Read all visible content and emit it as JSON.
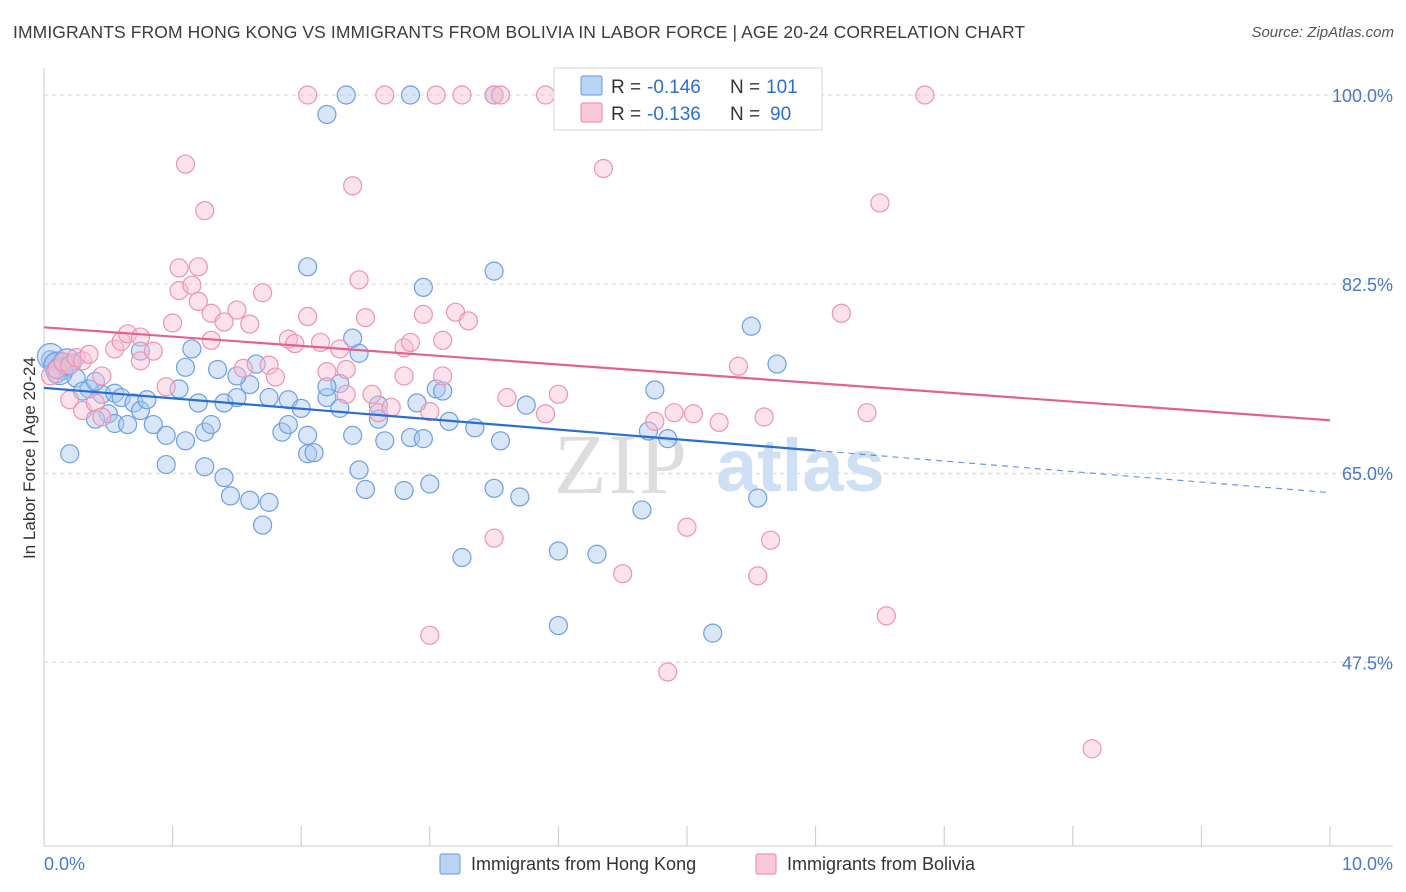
{
  "title": "IMMIGRANTS FROM HONG KONG VS IMMIGRANTS FROM BOLIVIA IN LABOR FORCE | AGE 20-24 CORRELATION CHART",
  "source": "Source: ZipAtlas.com",
  "watermark": {
    "zip": "ZIP",
    "atlas": "atlas"
  },
  "legend": {
    "r_label": "R =",
    "n_label": "N =",
    "entries": [
      {
        "r": "-0.146",
        "n": "101"
      },
      {
        "r": "-0.136",
        "n": "90"
      }
    ]
  },
  "chart_data": {
    "type": "scatter",
    "title": "IMMIGRANTS FROM HONG KONG VS IMMIGRANTS FROM BOLIVIA IN LABOR FORCE | AGE 20-24 CORRELATION CHART",
    "xlabel": "",
    "ylabel": "In Labor Force | Age 20-24",
    "xlim": [
      0,
      10
    ],
    "ylim": [
      30.5,
      102.5
    ],
    "x_tick_labels": [
      "0.0%",
      "10.0%"
    ],
    "y_ticks": [
      47.5,
      65.0,
      82.5,
      100.0
    ],
    "y_tick_labels": [
      "47.5%",
      "65.0%",
      "82.5%",
      "100.0%"
    ],
    "grid": true,
    "legend_position": "top-center",
    "colors": {
      "hong_kong_fill": "#a9c8f0",
      "hong_kong_stroke": "#6e9fe0",
      "hong_kong_line": "#2a6fd0",
      "bolivia_fill": "#f7bfd3",
      "bolivia_stroke": "#ee93b3",
      "bolivia_line": "#e2628f"
    },
    "series": [
      {
        "name": "Immigrants from Hong Kong",
        "r": -0.146,
        "n": 101,
        "trend": {
          "x0": 0.0,
          "y0": 72.9,
          "x1": 6.0,
          "y1": 67.1,
          "dash_x1": 10.0,
          "dash_y1": 63.2
        },
        "points": [
          [
            0.05,
            75.5
          ],
          [
            0.08,
            75.2
          ],
          [
            0.12,
            75.0
          ],
          [
            0.15,
            74.5
          ],
          [
            0.18,
            74.8
          ],
          [
            0.22,
            75.2
          ],
          [
            0.1,
            74.2
          ],
          [
            0.25,
            73.8
          ],
          [
            0.35,
            72.8
          ],
          [
            0.3,
            72.6
          ],
          [
            0.45,
            72.3
          ],
          [
            0.55,
            72.4
          ],
          [
            0.6,
            72.0
          ],
          [
            0.7,
            71.5
          ],
          [
            0.75,
            70.8
          ],
          [
            0.5,
            70.5
          ],
          [
            0.4,
            70.0
          ],
          [
            0.55,
            69.6
          ],
          [
            0.85,
            69.5
          ],
          [
            0.65,
            69.5
          ],
          [
            0.95,
            68.5
          ],
          [
            1.1,
            68.0
          ],
          [
            1.25,
            68.8
          ],
          [
            1.3,
            69.5
          ],
          [
            1.4,
            71.5
          ],
          [
            1.5,
            72.0
          ],
          [
            1.6,
            73.2
          ],
          [
            1.75,
            72.0
          ],
          [
            1.9,
            71.8
          ],
          [
            2.0,
            71.0
          ],
          [
            2.2,
            72.0
          ],
          [
            2.3,
            73.3
          ],
          [
            1.05,
            72.8
          ],
          [
            1.2,
            71.5
          ],
          [
            0.8,
            71.8
          ],
          [
            1.1,
            74.8
          ],
          [
            1.35,
            74.6
          ],
          [
            1.5,
            74.0
          ],
          [
            1.65,
            75.1
          ],
          [
            1.15,
            76.5
          ],
          [
            0.75,
            76.3
          ],
          [
            0.4,
            73.5
          ],
          [
            0.2,
            66.8
          ],
          [
            0.95,
            65.8
          ],
          [
            1.25,
            65.6
          ],
          [
            1.4,
            64.6
          ],
          [
            1.45,
            62.9
          ],
          [
            1.6,
            62.5
          ],
          [
            1.75,
            62.3
          ],
          [
            1.7,
            60.2
          ],
          [
            1.85,
            68.8
          ],
          [
            1.9,
            69.5
          ],
          [
            2.05,
            68.5
          ],
          [
            2.05,
            66.8
          ],
          [
            2.1,
            66.9
          ],
          [
            2.2,
            73.0
          ],
          [
            2.3,
            71.0
          ],
          [
            2.4,
            68.5
          ],
          [
            2.45,
            76.1
          ],
          [
            2.4,
            77.5
          ],
          [
            2.5,
            63.5
          ],
          [
            2.45,
            65.3
          ],
          [
            2.6,
            71.3
          ],
          [
            2.6,
            70.0
          ],
          [
            2.65,
            68.0
          ],
          [
            2.8,
            63.4
          ],
          [
            2.85,
            68.3
          ],
          [
            2.9,
            71.5
          ],
          [
            2.95,
            68.2
          ],
          [
            3.0,
            64.0
          ],
          [
            3.05,
            72.8
          ],
          [
            3.1,
            72.6
          ],
          [
            2.95,
            82.2
          ],
          [
            3.15,
            69.8
          ],
          [
            3.25,
            57.2
          ],
          [
            3.35,
            69.2
          ],
          [
            3.5,
            63.6
          ],
          [
            3.55,
            68.0
          ],
          [
            3.7,
            62.8
          ],
          [
            3.75,
            71.3
          ],
          [
            3.5,
            83.7
          ],
          [
            4.0,
            50.9
          ],
          [
            4.0,
            57.8
          ],
          [
            4.3,
            57.5
          ],
          [
            4.65,
            61.6
          ],
          [
            4.7,
            68.9
          ],
          [
            4.75,
            72.7
          ],
          [
            4.85,
            68.2
          ],
          [
            5.2,
            50.2
          ],
          [
            5.5,
            78.6
          ],
          [
            5.55,
            62.7
          ],
          [
            5.7,
            75.1
          ],
          [
            2.05,
            84.1
          ],
          [
            2.2,
            98.2
          ],
          [
            2.35,
            100.0
          ],
          [
            2.85,
            100.0
          ],
          [
            3.5,
            100.0
          ],
          [
            0.05,
            75.8
          ],
          [
            0.1,
            75.0
          ],
          [
            0.12,
            74.4
          ],
          [
            0.18,
            75.3
          ]
        ]
      },
      {
        "name": "Immigrants from Bolivia",
        "r": -0.136,
        "n": 90,
        "trend": {
          "x0": 0.0,
          "y0": 78.5,
          "x1": 10.0,
          "y1": 69.9
        },
        "points": [
          [
            0.05,
            74.0
          ],
          [
            0.1,
            74.6
          ],
          [
            0.15,
            75.3
          ],
          [
            0.2,
            75.0
          ],
          [
            0.25,
            75.7
          ],
          [
            0.3,
            75.4
          ],
          [
            0.35,
            76.0
          ],
          [
            0.45,
            74.0
          ],
          [
            0.2,
            71.8
          ],
          [
            0.3,
            70.8
          ],
          [
            0.4,
            71.5
          ],
          [
            0.45,
            70.2
          ],
          [
            0.55,
            76.5
          ],
          [
            0.6,
            77.2
          ],
          [
            0.65,
            77.9
          ],
          [
            0.75,
            77.6
          ],
          [
            0.75,
            75.4
          ],
          [
            0.85,
            76.3
          ],
          [
            0.95,
            73.0
          ],
          [
            1.0,
            78.9
          ],
          [
            1.05,
            81.9
          ],
          [
            1.15,
            82.4
          ],
          [
            1.2,
            80.9
          ],
          [
            1.05,
            84.0
          ],
          [
            1.2,
            84.1
          ],
          [
            1.3,
            79.8
          ],
          [
            1.3,
            77.3
          ],
          [
            1.4,
            79.0
          ],
          [
            1.5,
            80.1
          ],
          [
            1.55,
            74.7
          ],
          [
            1.6,
            78.8
          ],
          [
            1.7,
            81.7
          ],
          [
            1.75,
            75.0
          ],
          [
            1.8,
            73.9
          ],
          [
            1.9,
            77.4
          ],
          [
            1.95,
            77.0
          ],
          [
            2.05,
            79.5
          ],
          [
            2.15,
            77.1
          ],
          [
            2.2,
            74.4
          ],
          [
            2.3,
            76.5
          ],
          [
            2.35,
            74.6
          ],
          [
            2.35,
            72.3
          ],
          [
            2.45,
            82.9
          ],
          [
            2.5,
            79.4
          ],
          [
            2.55,
            72.3
          ],
          [
            2.6,
            70.6
          ],
          [
            2.7,
            71.1
          ],
          [
            2.8,
            76.6
          ],
          [
            2.8,
            74.0
          ],
          [
            2.85,
            77.1
          ],
          [
            2.95,
            79.7
          ],
          [
            3.0,
            70.7
          ],
          [
            3.1,
            74.0
          ],
          [
            3.1,
            77.3
          ],
          [
            3.2,
            79.9
          ],
          [
            3.3,
            79.1
          ],
          [
            3.0,
            50.0
          ],
          [
            3.5,
            59.0
          ],
          [
            3.6,
            72.0
          ],
          [
            3.9,
            70.5
          ],
          [
            4.0,
            72.3
          ],
          [
            4.5,
            55.7
          ],
          [
            4.75,
            69.8
          ],
          [
            4.9,
            70.6
          ],
          [
            5.05,
            70.5
          ],
          [
            4.85,
            46.6
          ],
          [
            5.0,
            60.0
          ],
          [
            5.25,
            69.7
          ],
          [
            5.4,
            74.9
          ],
          [
            5.55,
            55.5
          ],
          [
            5.6,
            70.2
          ],
          [
            5.65,
            58.8
          ],
          [
            6.2,
            79.8
          ],
          [
            6.4,
            70.6
          ],
          [
            6.5,
            90.0
          ],
          [
            6.55,
            51.8
          ],
          [
            8.15,
            39.5
          ],
          [
            1.1,
            93.6
          ],
          [
            1.25,
            89.3
          ],
          [
            2.4,
            91.6
          ],
          [
            2.05,
            100.0
          ],
          [
            2.65,
            100.0
          ],
          [
            3.05,
            100.0
          ],
          [
            3.25,
            100.0
          ],
          [
            3.5,
            100.0
          ],
          [
            3.55,
            100.0
          ],
          [
            3.9,
            100.0
          ],
          [
            4.1,
            100.0
          ],
          [
            4.35,
            93.2
          ],
          [
            6.85,
            100.0
          ]
        ]
      }
    ]
  },
  "bottom_legend": {
    "items": [
      {
        "label": "Immigrants from Hong Kong"
      },
      {
        "label": "Immigrants from Bolivia"
      }
    ]
  }
}
